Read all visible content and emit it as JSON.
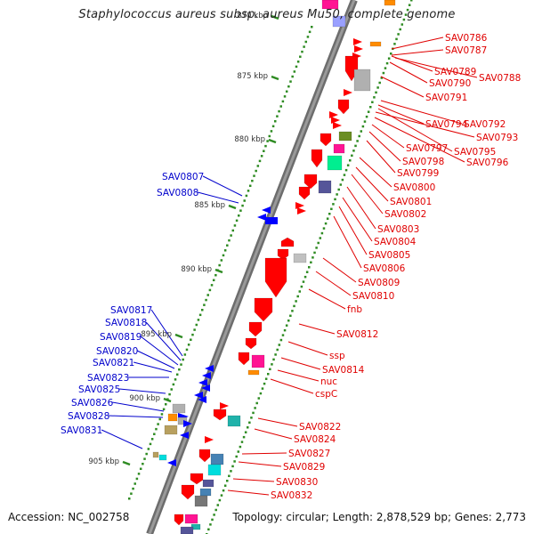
{
  "title": "Staphylococcus aureus subsp. aureus Mu50, complete genome",
  "accession": "Accession: NC_002758",
  "summary": "Topology: circular; Length: 2,878,529 bp; Genes: 2,773",
  "colors": {
    "backbone": "#808080",
    "tick": "#2e8b22",
    "forward_label": "#e00000",
    "reverse_label": "#0000cc",
    "forward_gene": "#ff0000",
    "reverse_gene": "#0000ff",
    "line": "#000000"
  },
  "scale_labels": [
    "870 kbp",
    "875 kbp",
    "880 kbp",
    "885 kbp",
    "890 kbp",
    "895 kbp",
    "900 kbp",
    "905 kbp"
  ],
  "genes_forward": [
    "SAV0786",
    "SAV0787",
    "SAV0789",
    "SAV0788",
    "SAV0790",
    "SAV0791",
    "SAV0794",
    "SAV0792",
    "SAV0793",
    "SAV0797",
    "SAV0795",
    "SAV0796",
    "SAV0798",
    "SAV0799",
    "SAV0800",
    "SAV0801",
    "SAV0802",
    "SAV0803",
    "SAV0804",
    "SAV0805",
    "SAV0806",
    "SAV0809",
    "SAV0810",
    "fnb",
    "SAV0812",
    "ssp",
    "SAV0814",
    "nuc",
    "cspC",
    "SAV0822",
    "SAV0824",
    "SAV0827",
    "SAV0829",
    "SAV0830",
    "SAV0832"
  ],
  "genes_reverse": [
    "SAV0807",
    "SAV0808",
    "SAV0817",
    "SAV0818",
    "SAV0819",
    "SAV0820",
    "SAV0821",
    "SAV0823",
    "SAV0825",
    "SAV0826",
    "SAV0828",
    "SAV0831"
  ]
}
